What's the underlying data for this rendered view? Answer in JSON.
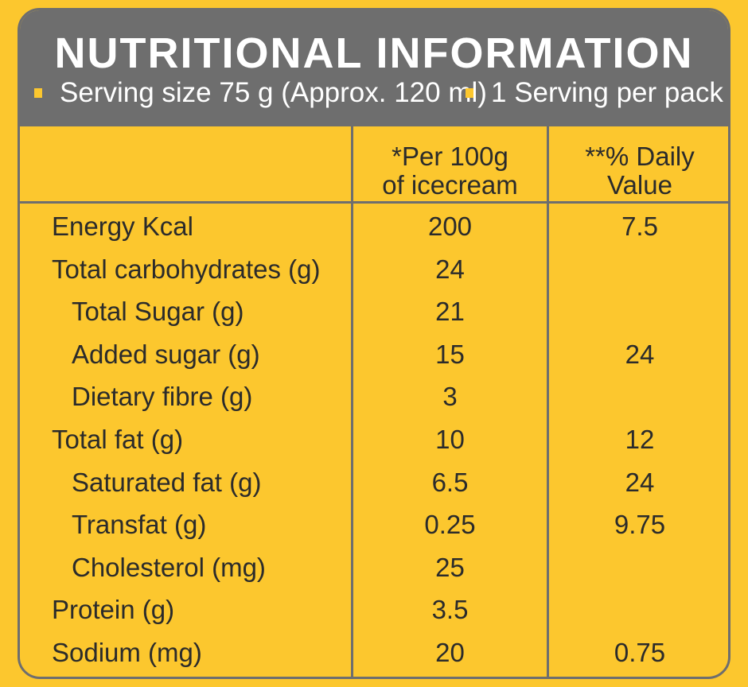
{
  "title": "NUTRITIONAL INFORMATION",
  "serving_size": "Serving size 75 g (Approx. 120 ml)",
  "servings_per_pack": "1 Serving per pack",
  "columns": {
    "per100": "*Per 100g\nof icecream",
    "daily": "**% Daily\nValue"
  },
  "rows": [
    {
      "name": "Energy Kcal",
      "per100": "200",
      "daily": "7.5",
      "indent": false
    },
    {
      "name": "Total carbohydrates (g)",
      "per100": "24",
      "daily": "",
      "indent": false
    },
    {
      "name": "Total Sugar (g)",
      "per100": "21",
      "daily": "",
      "indent": true
    },
    {
      "name": "Added sugar (g)",
      "per100": "15",
      "daily": "24",
      "indent": true
    },
    {
      "name": "Dietary fibre (g)",
      "per100": "3",
      "daily": "",
      "indent": true
    },
    {
      "name": "Total fat (g)",
      "per100": "10",
      "daily": "12",
      "indent": false
    },
    {
      "name": "Saturated fat (g)",
      "per100": "6.5",
      "daily": "24",
      "indent": true
    },
    {
      "name": "Transfat (g)",
      "per100": "0.25",
      "daily": "9.75",
      "indent": true
    },
    {
      "name": "Cholesterol (mg)",
      "per100": "25",
      "daily": "",
      "indent": true
    },
    {
      "name": "Protein (g)",
      "per100": "3.5",
      "daily": "",
      "indent": false
    },
    {
      "name": "Sodium (mg)",
      "per100": "20",
      "daily": "0.75",
      "indent": false
    }
  ],
  "colors": {
    "header_gray": "#6e6e6e",
    "label_yellow": "#fcc72e",
    "text_dark": "#2b2b2b"
  }
}
